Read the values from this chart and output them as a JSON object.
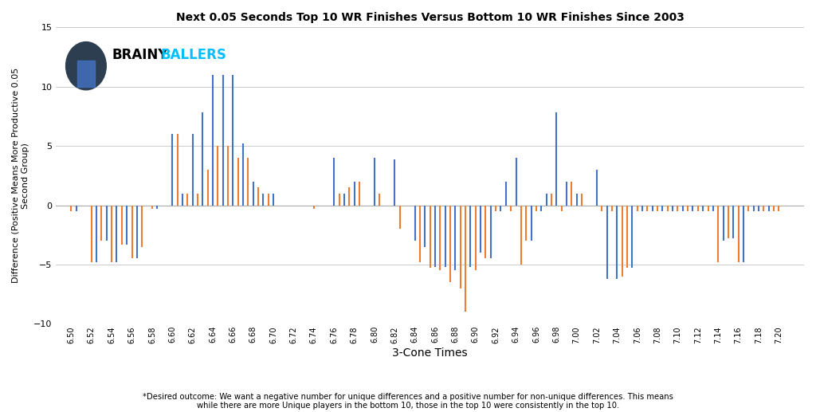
{
  "title": "Next 0.05 Seconds Top 10 WR Finishes Versus Bottom 10 WR Finishes Since 2003",
  "xlabel": "3-Cone Times",
  "ylabel": "Difference (Positive Means More Productive 0.05\nSecond Group)",
  "footnote": "*Desired outcome: We want a negative number for unique differences and a positive number for non-unique differences. This means\nwhile there are more Unique players in the bottom 10, those in the top 10 were consistently in the top 10.",
  "xlim": [
    6.485,
    7.225
  ],
  "ylim": [
    -10,
    15
  ],
  "yticks": [
    -10,
    -5,
    0,
    5,
    10,
    15
  ],
  "background_color": "#ffffff",
  "blue_color": "#4472C4",
  "orange_color": "#ED7D31",
  "logo_text_black": "BRAINY",
  "logo_text_cyan": "BALLERS",
  "bars": [
    {
      "x": 6.5,
      "val": -0.5,
      "color": "orange"
    },
    {
      "x": 6.505,
      "val": -0.5,
      "color": "blue"
    },
    {
      "x": 6.52,
      "val": -4.8,
      "color": "orange"
    },
    {
      "x": 6.525,
      "val": -4.8,
      "color": "blue"
    },
    {
      "x": 6.53,
      "val": -3.0,
      "color": "orange"
    },
    {
      "x": 6.535,
      "val": -3.0,
      "color": "blue"
    },
    {
      "x": 6.54,
      "val": -4.8,
      "color": "orange"
    },
    {
      "x": 6.545,
      "val": -4.8,
      "color": "blue"
    },
    {
      "x": 6.55,
      "val": -3.3,
      "color": "orange"
    },
    {
      "x": 6.555,
      "val": -3.3,
      "color": "blue"
    },
    {
      "x": 6.56,
      "val": -4.5,
      "color": "orange"
    },
    {
      "x": 6.565,
      "val": -4.5,
      "color": "blue"
    },
    {
      "x": 6.57,
      "val": -3.5,
      "color": "orange"
    },
    {
      "x": 6.58,
      "val": -0.3,
      "color": "orange"
    },
    {
      "x": 6.585,
      "val": -0.3,
      "color": "blue"
    },
    {
      "x": 6.6,
      "val": 6.0,
      "color": "blue"
    },
    {
      "x": 6.605,
      "val": 6.0,
      "color": "orange"
    },
    {
      "x": 6.61,
      "val": 1.0,
      "color": "blue"
    },
    {
      "x": 6.615,
      "val": 1.0,
      "color": "orange"
    },
    {
      "x": 6.62,
      "val": 6.0,
      "color": "blue"
    },
    {
      "x": 6.625,
      "val": 1.0,
      "color": "orange"
    },
    {
      "x": 6.63,
      "val": 7.8,
      "color": "blue"
    },
    {
      "x": 6.635,
      "val": 3.0,
      "color": "orange"
    },
    {
      "x": 6.64,
      "val": 11.0,
      "color": "blue"
    },
    {
      "x": 6.645,
      "val": 5.0,
      "color": "orange"
    },
    {
      "x": 6.65,
      "val": 11.0,
      "color": "blue"
    },
    {
      "x": 6.655,
      "val": 5.0,
      "color": "orange"
    },
    {
      "x": 6.66,
      "val": 11.0,
      "color": "blue"
    },
    {
      "x": 6.665,
      "val": 4.0,
      "color": "orange"
    },
    {
      "x": 6.67,
      "val": 5.2,
      "color": "blue"
    },
    {
      "x": 6.675,
      "val": 4.0,
      "color": "orange"
    },
    {
      "x": 6.68,
      "val": 2.0,
      "color": "blue"
    },
    {
      "x": 6.685,
      "val": 1.5,
      "color": "orange"
    },
    {
      "x": 6.69,
      "val": 1.0,
      "color": "blue"
    },
    {
      "x": 6.695,
      "val": 1.0,
      "color": "orange"
    },
    {
      "x": 6.7,
      "val": 1.0,
      "color": "blue"
    },
    {
      "x": 6.74,
      "val": -0.3,
      "color": "orange"
    },
    {
      "x": 6.76,
      "val": 4.0,
      "color": "blue"
    },
    {
      "x": 6.765,
      "val": 1.0,
      "color": "orange"
    },
    {
      "x": 6.77,
      "val": 1.0,
      "color": "blue"
    },
    {
      "x": 6.775,
      "val": 1.5,
      "color": "orange"
    },
    {
      "x": 6.78,
      "val": 2.0,
      "color": "blue"
    },
    {
      "x": 6.785,
      "val": 2.0,
      "color": "orange"
    },
    {
      "x": 6.8,
      "val": 4.0,
      "color": "blue"
    },
    {
      "x": 6.805,
      "val": 1.0,
      "color": "orange"
    },
    {
      "x": 6.82,
      "val": 3.9,
      "color": "blue"
    },
    {
      "x": 6.825,
      "val": -2.0,
      "color": "orange"
    },
    {
      "x": 6.84,
      "val": -3.0,
      "color": "blue"
    },
    {
      "x": 6.845,
      "val": -4.8,
      "color": "orange"
    },
    {
      "x": 6.85,
      "val": -3.5,
      "color": "blue"
    },
    {
      "x": 6.855,
      "val": -5.3,
      "color": "orange"
    },
    {
      "x": 6.86,
      "val": -5.2,
      "color": "blue"
    },
    {
      "x": 6.865,
      "val": -5.5,
      "color": "orange"
    },
    {
      "x": 6.87,
      "val": -5.2,
      "color": "blue"
    },
    {
      "x": 6.875,
      "val": -6.5,
      "color": "orange"
    },
    {
      "x": 6.88,
      "val": -5.5,
      "color": "blue"
    },
    {
      "x": 6.885,
      "val": -7.0,
      "color": "orange"
    },
    {
      "x": 6.89,
      "val": -9.0,
      "color": "orange"
    },
    {
      "x": 6.895,
      "val": -5.2,
      "color": "blue"
    },
    {
      "x": 6.9,
      "val": -5.5,
      "color": "orange"
    },
    {
      "x": 6.905,
      "val": -4.0,
      "color": "blue"
    },
    {
      "x": 6.91,
      "val": -4.5,
      "color": "orange"
    },
    {
      "x": 6.915,
      "val": -4.5,
      "color": "blue"
    },
    {
      "x": 6.92,
      "val": -0.5,
      "color": "orange"
    },
    {
      "x": 6.925,
      "val": -0.5,
      "color": "blue"
    },
    {
      "x": 6.93,
      "val": 2.0,
      "color": "blue"
    },
    {
      "x": 6.935,
      "val": -0.5,
      "color": "orange"
    },
    {
      "x": 6.94,
      "val": 4.0,
      "color": "blue"
    },
    {
      "x": 6.945,
      "val": -5.0,
      "color": "orange"
    },
    {
      "x": 6.95,
      "val": -3.0,
      "color": "orange"
    },
    {
      "x": 6.955,
      "val": -3.0,
      "color": "blue"
    },
    {
      "x": 6.96,
      "val": -0.5,
      "color": "orange"
    },
    {
      "x": 6.965,
      "val": -0.5,
      "color": "blue"
    },
    {
      "x": 6.97,
      "val": 1.0,
      "color": "blue"
    },
    {
      "x": 6.975,
      "val": 1.0,
      "color": "orange"
    },
    {
      "x": 6.98,
      "val": 7.8,
      "color": "blue"
    },
    {
      "x": 6.985,
      "val": -0.5,
      "color": "orange"
    },
    {
      "x": 6.99,
      "val": 2.0,
      "color": "blue"
    },
    {
      "x": 6.995,
      "val": 2.0,
      "color": "orange"
    },
    {
      "x": 7.0,
      "val": 1.0,
      "color": "blue"
    },
    {
      "x": 7.005,
      "val": 1.0,
      "color": "orange"
    },
    {
      "x": 7.02,
      "val": 3.0,
      "color": "blue"
    },
    {
      "x": 7.025,
      "val": -0.5,
      "color": "orange"
    },
    {
      "x": 7.03,
      "val": -6.2,
      "color": "blue"
    },
    {
      "x": 7.035,
      "val": -0.5,
      "color": "orange"
    },
    {
      "x": 7.04,
      "val": -6.2,
      "color": "blue"
    },
    {
      "x": 7.045,
      "val": -6.0,
      "color": "orange"
    },
    {
      "x": 7.05,
      "val": -5.3,
      "color": "orange"
    },
    {
      "x": 7.055,
      "val": -5.3,
      "color": "blue"
    },
    {
      "x": 7.06,
      "val": -0.5,
      "color": "orange"
    },
    {
      "x": 7.065,
      "val": -0.5,
      "color": "blue"
    },
    {
      "x": 7.07,
      "val": -0.5,
      "color": "orange"
    },
    {
      "x": 7.075,
      "val": -0.5,
      "color": "blue"
    },
    {
      "x": 7.08,
      "val": -0.5,
      "color": "orange"
    },
    {
      "x": 7.085,
      "val": -0.5,
      "color": "blue"
    },
    {
      "x": 7.09,
      "val": -0.5,
      "color": "orange"
    },
    {
      "x": 7.095,
      "val": -0.5,
      "color": "blue"
    },
    {
      "x": 7.1,
      "val": -0.5,
      "color": "orange"
    },
    {
      "x": 7.105,
      "val": -0.5,
      "color": "blue"
    },
    {
      "x": 7.11,
      "val": -0.5,
      "color": "orange"
    },
    {
      "x": 7.115,
      "val": -0.5,
      "color": "blue"
    },
    {
      "x": 7.12,
      "val": -0.5,
      "color": "orange"
    },
    {
      "x": 7.125,
      "val": -0.5,
      "color": "blue"
    },
    {
      "x": 7.13,
      "val": -0.5,
      "color": "orange"
    },
    {
      "x": 7.135,
      "val": -0.5,
      "color": "blue"
    },
    {
      "x": 7.14,
      "val": -4.8,
      "color": "orange"
    },
    {
      "x": 7.145,
      "val": -3.0,
      "color": "blue"
    },
    {
      "x": 7.15,
      "val": -2.8,
      "color": "orange"
    },
    {
      "x": 7.155,
      "val": -2.8,
      "color": "blue"
    },
    {
      "x": 7.16,
      "val": -4.8,
      "color": "orange"
    },
    {
      "x": 7.165,
      "val": -4.8,
      "color": "blue"
    },
    {
      "x": 7.17,
      "val": -0.5,
      "color": "orange"
    },
    {
      "x": 7.175,
      "val": -0.5,
      "color": "blue"
    },
    {
      "x": 7.18,
      "val": -0.5,
      "color": "blue"
    },
    {
      "x": 7.185,
      "val": -0.5,
      "color": "orange"
    },
    {
      "x": 7.19,
      "val": -0.5,
      "color": "blue"
    },
    {
      "x": 7.195,
      "val": -0.5,
      "color": "orange"
    },
    {
      "x": 7.2,
      "val": -0.5,
      "color": "orange"
    }
  ]
}
